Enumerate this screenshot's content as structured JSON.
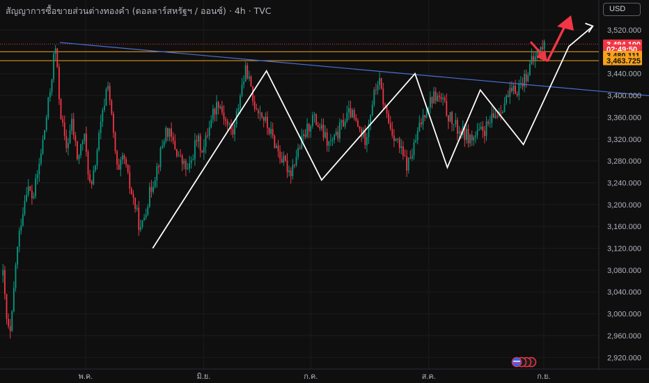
{
  "header": {
    "title": "สัญญาการซื้อขายส่วนต่างทองคำ (ดอลลาร์สหรัฐฯ / ออนซ์) · 4h · TVC",
    "currency_button": "USD"
  },
  "chart_data": {
    "type": "candlestick",
    "ylim": [
      2900,
      3560
    ],
    "y_ticks": [
      2920,
      2960,
      3000,
      3040,
      3080,
      3120,
      3160,
      3200,
      3240,
      3280,
      3320,
      3360,
      3400,
      3440,
      3480,
      3520
    ],
    "y_tick_labels": [
      "2,920.000",
      "2,960.000",
      "3,000.000",
      "3,040.000",
      "3,080.000",
      "3,120.000",
      "3,160.000",
      "3,200.000",
      "3,240.000",
      "3,280.000",
      "3,320.000",
      "3,360.000",
      "3,400.000",
      "3,440.000",
      "3,480.000",
      "3,520.000"
    ],
    "x_ticks": [
      {
        "label": "พ.ค.",
        "t": 0.143
      },
      {
        "label": "มิ.ย.",
        "t": 0.34
      },
      {
        "label": "ก.ค.",
        "t": 0.519
      },
      {
        "label": "ส.ค.",
        "t": 0.716
      },
      {
        "label": "ก.ย.",
        "t": 0.908
      }
    ],
    "price_path": [
      {
        "t": 0.005,
        "v": 3070
      },
      {
        "t": 0.012,
        "v": 2975
      },
      {
        "t": 0.018,
        "v": 2960
      },
      {
        "t": 0.026,
        "v": 3090
      },
      {
        "t": 0.035,
        "v": 3170
      },
      {
        "t": 0.045,
        "v": 3235
      },
      {
        "t": 0.055,
        "v": 3210
      },
      {
        "t": 0.065,
        "v": 3270
      },
      {
        "t": 0.075,
        "v": 3340
      },
      {
        "t": 0.085,
        "v": 3420
      },
      {
        "t": 0.092,
        "v": 3495
      },
      {
        "t": 0.1,
        "v": 3380
      },
      {
        "t": 0.11,
        "v": 3300
      },
      {
        "t": 0.12,
        "v": 3350
      },
      {
        "t": 0.13,
        "v": 3280
      },
      {
        "t": 0.14,
        "v": 3330
      },
      {
        "t": 0.152,
        "v": 3220
      },
      {
        "t": 0.162,
        "v": 3300
      },
      {
        "t": 0.172,
        "v": 3370
      },
      {
        "t": 0.18,
        "v": 3430
      },
      {
        "t": 0.188,
        "v": 3340
      },
      {
        "t": 0.197,
        "v": 3250
      },
      {
        "t": 0.206,
        "v": 3290
      },
      {
        "t": 0.215,
        "v": 3240
      },
      {
        "t": 0.225,
        "v": 3200
      },
      {
        "t": 0.235,
        "v": 3150
      },
      {
        "t": 0.245,
        "v": 3200
      },
      {
        "t": 0.255,
        "v": 3240
      },
      {
        "t": 0.265,
        "v": 3280
      },
      {
        "t": 0.278,
        "v": 3340
      },
      {
        "t": 0.29,
        "v": 3310
      },
      {
        "t": 0.302,
        "v": 3280
      },
      {
        "t": 0.315,
        "v": 3260
      },
      {
        "t": 0.328,
        "v": 3320
      },
      {
        "t": 0.34,
        "v": 3300
      },
      {
        "t": 0.352,
        "v": 3360
      },
      {
        "t": 0.365,
        "v": 3390
      },
      {
        "t": 0.378,
        "v": 3350
      },
      {
        "t": 0.39,
        "v": 3330
      },
      {
        "t": 0.402,
        "v": 3410
      },
      {
        "t": 0.412,
        "v": 3450
      },
      {
        "t": 0.422,
        "v": 3390
      },
      {
        "t": 0.435,
        "v": 3370
      },
      {
        "t": 0.448,
        "v": 3340
      },
      {
        "t": 0.46,
        "v": 3310
      },
      {
        "t": 0.472,
        "v": 3280
      },
      {
        "t": 0.485,
        "v": 3260
      },
      {
        "t": 0.498,
        "v": 3300
      },
      {
        "t": 0.51,
        "v": 3330
      },
      {
        "t": 0.522,
        "v": 3360
      },
      {
        "t": 0.535,
        "v": 3340
      },
      {
        "t": 0.548,
        "v": 3310
      },
      {
        "t": 0.56,
        "v": 3320
      },
      {
        "t": 0.572,
        "v": 3350
      },
      {
        "t": 0.585,
        "v": 3370
      },
      {
        "t": 0.598,
        "v": 3340
      },
      {
        "t": 0.61,
        "v": 3320
      },
      {
        "t": 0.622,
        "v": 3390
      },
      {
        "t": 0.632,
        "v": 3430
      },
      {
        "t": 0.642,
        "v": 3380
      },
      {
        "t": 0.652,
        "v": 3340
      },
      {
        "t": 0.662,
        "v": 3320
      },
      {
        "t": 0.672,
        "v": 3290
      },
      {
        "t": 0.68,
        "v": 3270
      },
      {
        "t": 0.69,
        "v": 3300
      },
      {
        "t": 0.7,
        "v": 3340
      },
      {
        "t": 0.712,
        "v": 3380
      },
      {
        "t": 0.725,
        "v": 3400
      },
      {
        "t": 0.738,
        "v": 3390
      },
      {
        "t": 0.75,
        "v": 3360
      },
      {
        "t": 0.762,
        "v": 3340
      },
      {
        "t": 0.775,
        "v": 3330
      },
      {
        "t": 0.788,
        "v": 3320
      },
      {
        "t": 0.8,
        "v": 3330
      },
      {
        "t": 0.812,
        "v": 3340
      },
      {
        "t": 0.825,
        "v": 3360
      },
      {
        "t": 0.838,
        "v": 3380
      },
      {
        "t": 0.85,
        "v": 3400
      },
      {
        "t": 0.862,
        "v": 3410
      },
      {
        "t": 0.875,
        "v": 3430
      },
      {
        "t": 0.888,
        "v": 3460
      },
      {
        "t": 0.9,
        "v": 3480
      },
      {
        "t": 0.91,
        "v": 3494
      }
    ],
    "zigzag_pattern": [
      {
        "t": 0.255,
        "v": 3120
      },
      {
        "t": 0.445,
        "v": 3445
      },
      {
        "t": 0.537,
        "v": 3245
      },
      {
        "t": 0.693,
        "v": 3440
      },
      {
        "t": 0.747,
        "v": 3268
      },
      {
        "t": 0.802,
        "v": 3410
      },
      {
        "t": 0.874,
        "v": 3310
      },
      {
        "t": 0.95,
        "v": 3490
      },
      {
        "t": 0.99,
        "v": 3527
      }
    ],
    "trendline": [
      {
        "t": 0.1,
        "v": 3497
      },
      {
        "t": 1.1,
        "v": 3398
      }
    ],
    "horizontal_levels": [
      {
        "v": 3494.1,
        "style": "dotted",
        "color": "#f23645"
      },
      {
        "v": 3480.111,
        "style": "solid",
        "color": "#f7a21b"
      },
      {
        "v": 3463.725,
        "style": "solid",
        "color": "#f7a21b"
      }
    ],
    "price_labels": [
      {
        "v": 3494.1,
        "text": "3,494.100",
        "bg": "#f23645",
        "fg": "#ffffff"
      },
      {
        "v": 3485.0,
        "text": "02:49:50",
        "bg": "#f23645",
        "fg": "#ffffff"
      },
      {
        "v": 3473.5,
        "text": "3,480.111",
        "bg": "#f7a21b",
        "fg": "#131313"
      },
      {
        "v": 3463.725,
        "text": "3,463.725",
        "bg": "#f7a21b",
        "fg": "#131313"
      }
    ]
  }
}
